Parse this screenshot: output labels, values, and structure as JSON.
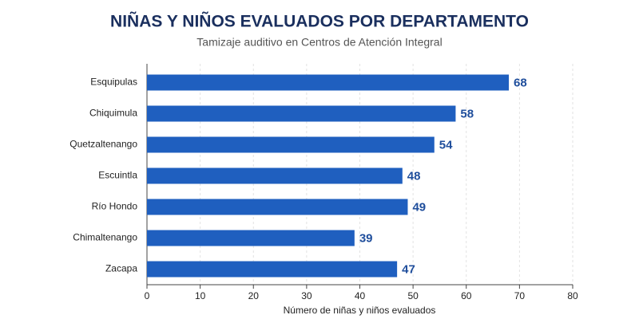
{
  "chart_data": {
    "type": "hbar",
    "title": "NIÑAS Y NIÑOS EVALUADOS POR DEPARTAMENTO",
    "subtitle": "Tamizaje auditivo en Centros de Atención Integral",
    "x_label": "Número de niñas y niños evaluados",
    "categories": [
      "Esquipulas",
      "Chiquimula",
      "Quetzaltenango",
      "Escuintla",
      "Río Hondo",
      "Chimaltenango",
      "Zacapa"
    ],
    "values": [
      68,
      58,
      54,
      48,
      49,
      39,
      47
    ],
    "color": "#1f5fbf",
    "xlim": [
      0,
      80
    ],
    "xticks": [
      0,
      10,
      20,
      30,
      40,
      50,
      60,
      70,
      80
    ],
    "grid": true
  }
}
